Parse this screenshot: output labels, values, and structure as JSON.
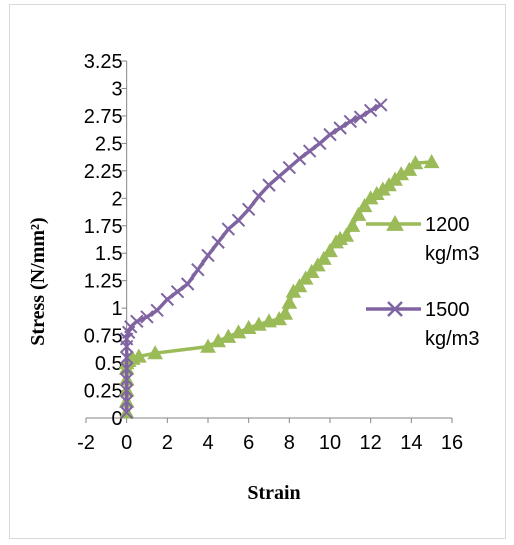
{
  "chart_data": {
    "type": "line",
    "title": "",
    "xlabel": "Strain",
    "ylabel": "Stress (N/mm²)",
    "xlim": [
      -2,
      16
    ],
    "ylim": [
      0,
      3.25
    ],
    "xticks": [
      "-2",
      "0",
      "2",
      "4",
      "6",
      "8",
      "10",
      "12",
      "14",
      "16"
    ],
    "yticks": [
      "0",
      "0.25",
      "0.5",
      "0.75",
      "1",
      "1.25",
      "1.5",
      "1.75",
      "2",
      "2.25",
      "2.5",
      "2.75",
      "3",
      "3.25"
    ],
    "grid": false,
    "legend_position": "right",
    "series": [
      {
        "name": "1200 kg/m3",
        "color": "#9bbb59",
        "marker": "triangle",
        "x": [
          0,
          0,
          0,
          0,
          0,
          0,
          0.1,
          0.3,
          0.6,
          1.4,
          4.0,
          4.5,
          5.0,
          5.5,
          6.0,
          6.5,
          7.0,
          7.5,
          7.8,
          8.0,
          8.2,
          8.5,
          8.8,
          9.1,
          9.4,
          9.7,
          10.0,
          10.3,
          10.5,
          10.8,
          11.1,
          11.4,
          11.7,
          12.0,
          12.3,
          12.6,
          12.9,
          13.2,
          13.5,
          13.9,
          14.2,
          15.0
        ],
        "y": [
          0.05,
          0.15,
          0.25,
          0.35,
          0.45,
          0.5,
          0.52,
          0.54,
          0.56,
          0.59,
          0.65,
          0.7,
          0.74,
          0.78,
          0.82,
          0.85,
          0.88,
          0.9,
          0.95,
          1.05,
          1.15,
          1.2,
          1.27,
          1.33,
          1.39,
          1.45,
          1.52,
          1.6,
          1.63,
          1.66,
          1.75,
          1.85,
          1.93,
          2.0,
          2.04,
          2.08,
          2.12,
          2.17,
          2.22,
          2.26,
          2.32,
          2.33
        ]
      },
      {
        "name": "1500 kg/m3",
        "color": "#8064a2",
        "marker": "x",
        "x": [
          0,
          0,
          0,
          0,
          0,
          0,
          0,
          0,
          0.1,
          0.2,
          0.5,
          1.0,
          1.5,
          2.0,
          2.5,
          3.0,
          3.5,
          4.0,
          4.5,
          5.0,
          5.5,
          6.0,
          6.5,
          7.0,
          7.5,
          8.0,
          8.5,
          9.0,
          9.5,
          10.0,
          10.5,
          11.0,
          11.5,
          12.0,
          12.5
        ],
        "y": [
          0.05,
          0.15,
          0.25,
          0.35,
          0.45,
          0.55,
          0.65,
          0.72,
          0.78,
          0.83,
          0.88,
          0.92,
          0.98,
          1.08,
          1.15,
          1.22,
          1.35,
          1.48,
          1.6,
          1.72,
          1.8,
          1.9,
          2.02,
          2.12,
          2.2,
          2.28,
          2.36,
          2.43,
          2.5,
          2.58,
          2.64,
          2.7,
          2.74,
          2.8,
          2.85
        ]
      }
    ],
    "legend": [
      {
        "line1": "1200",
        "line2": "kg/m3"
      },
      {
        "line1": "1500",
        "line2": "kg/m3"
      }
    ]
  }
}
